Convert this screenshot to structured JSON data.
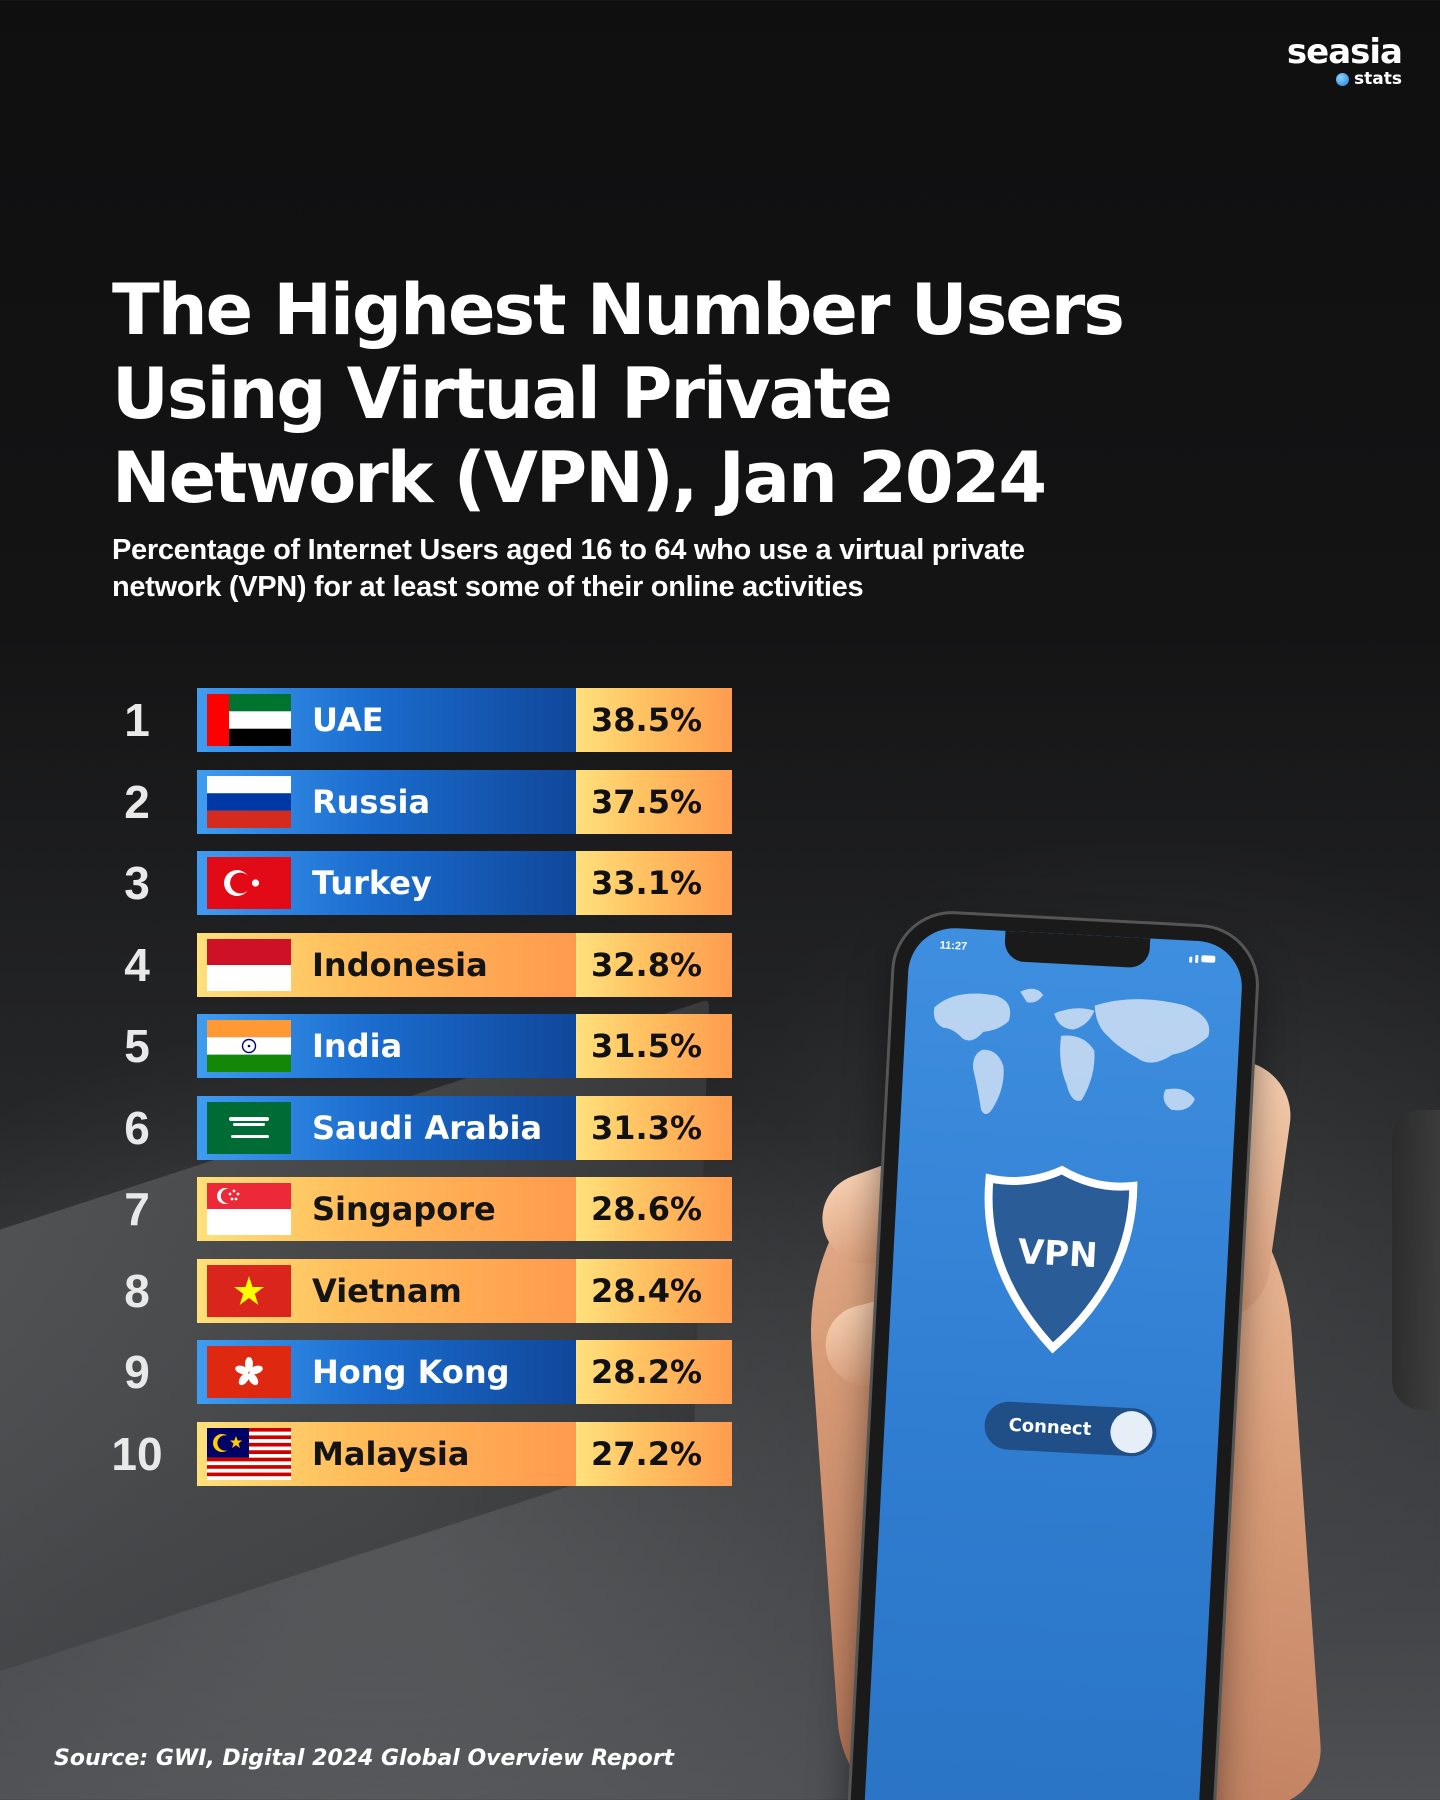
{
  "logo": {
    "word": "seasia",
    "sub": "stats"
  },
  "title": "The Highest Number Users Using Virtual Private Network (VPN), Jan 2024",
  "subtitle": "Percentage of Internet Users aged 16 to 64 who use a virtual private network (VPN) for at least some of their online activities",
  "source": "Source: GWI, Digital 2024 Global Overview Report",
  "phone": {
    "time": "11:27",
    "shield_label": "VPN",
    "toggle_label": "Connect"
  },
  "colors": {
    "blue_bar": "#1b6dcf",
    "orange_bar": "#ffbe5c",
    "value_bar": "#ffc060"
  },
  "chart_data": {
    "type": "table",
    "title": "The Highest Number Users Using Virtual Private Network (VPN), Jan 2024",
    "columns": [
      "rank",
      "country",
      "value"
    ],
    "rows": [
      {
        "rank": "1",
        "country": "UAE",
        "value": "38.5%",
        "flag": "uae-flag-icon",
        "style": "blue"
      },
      {
        "rank": "2",
        "country": "Russia",
        "value": "37.5%",
        "flag": "russia-flag-icon",
        "style": "blue"
      },
      {
        "rank": "3",
        "country": "Turkey",
        "value": "33.1%",
        "flag": "turkey-flag-icon",
        "style": "blue"
      },
      {
        "rank": "4",
        "country": "Indonesia",
        "value": "32.8%",
        "flag": "indonesia-flag-icon",
        "style": "orange"
      },
      {
        "rank": "5",
        "country": "India",
        "value": "31.5%",
        "flag": "india-flag-icon",
        "style": "blue"
      },
      {
        "rank": "6",
        "country": "Saudi Arabia",
        "value": "31.3%",
        "flag": "saudi-arabia-flag-icon",
        "style": "blue"
      },
      {
        "rank": "7",
        "country": "Singapore",
        "value": "28.6%",
        "flag": "singapore-flag-icon",
        "style": "orange"
      },
      {
        "rank": "8",
        "country": "Vietnam",
        "value": "28.4%",
        "flag": "vietnam-flag-icon",
        "style": "orange"
      },
      {
        "rank": "9",
        "country": "Hong Kong",
        "value": "28.2%",
        "flag": "hong-kong-flag-icon",
        "style": "blue"
      },
      {
        "rank": "10",
        "country": "Malaysia",
        "value": "27.2%",
        "flag": "malaysia-flag-icon",
        "style": "orange"
      }
    ]
  }
}
